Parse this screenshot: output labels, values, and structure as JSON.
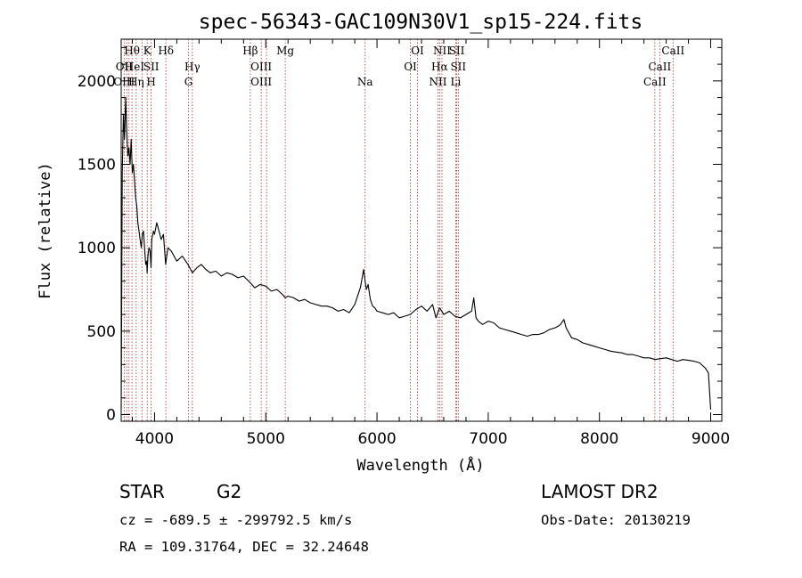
{
  "chart_data": {
    "type": "line",
    "title": "spec-56343-GAC109N30V1_sp15-224.fits",
    "xlabel": "Wavelength (Å)",
    "ylabel": "Flux (relative)",
    "xlim": [
      3700,
      9100
    ],
    "ylim": [
      -40,
      2250
    ],
    "xticks": [
      4000,
      5000,
      6000,
      7000,
      8000,
      9000
    ],
    "yticks": [
      0,
      500,
      1000,
      1500,
      2000
    ],
    "grid": false,
    "series": [
      {
        "x": [
          3700,
          3710,
          3720,
          3730,
          3740,
          3750,
          3760,
          3770,
          3780,
          3790,
          3800,
          3810,
          3820,
          3830,
          3840,
          3850,
          3860,
          3870,
          3880,
          3890,
          3900,
          3910,
          3920,
          3930,
          3933,
          3940,
          3950,
          3960,
          3968,
          3975,
          3990,
          4000,
          4020,
          4040,
          4060,
          4080,
          4100,
          4120,
          4150,
          4200,
          4250,
          4300,
          4340,
          4380,
          4420,
          4460,
          4500,
          4550,
          4600,
          4650,
          4700,
          4750,
          4800,
          4861,
          4900,
          4950,
          5000,
          5050,
          5100,
          5150,
          5175,
          5200,
          5250,
          5300,
          5350,
          5400,
          5450,
          5500,
          5550,
          5600,
          5650,
          5700,
          5750,
          5800,
          5850,
          5880,
          5893,
          5905,
          5920,
          5940,
          5960,
          5980,
          6000,
          6050,
          6100,
          6150,
          6200,
          6250,
          6300,
          6350,
          6400,
          6450,
          6500,
          6530,
          6563,
          6600,
          6650,
          6700,
          6750,
          6800,
          6850,
          6870,
          6890,
          6910,
          6950,
          7000,
          7050,
          7100,
          7150,
          7200,
          7250,
          7300,
          7350,
          7400,
          7450,
          7500,
          7550,
          7600,
          7630,
          7650,
          7680,
          7700,
          7750,
          7800,
          7850,
          7900,
          7950,
          8000,
          8050,
          8100,
          8150,
          8200,
          8250,
          8300,
          8350,
          8400,
          8450,
          8500,
          8550,
          8600,
          8650,
          8700,
          8750,
          8800,
          8850,
          8900,
          8950,
          8980,
          9000
        ],
        "y": [
          30,
          1450,
          1800,
          1650,
          1900,
          1700,
          1550,
          1600,
          1500,
          1650,
          1450,
          1500,
          1400,
          1300,
          1250,
          1150,
          1100,
          1050,
          1000,
          1080,
          1100,
          1000,
          900,
          920,
          850,
          950,
          1000,
          980,
          880,
          1050,
          1100,
          1080,
          1150,
          1100,
          1050,
          1080,
          900,
          1000,
          980,
          920,
          950,
          900,
          850,
          880,
          900,
          870,
          850,
          860,
          830,
          850,
          840,
          820,
          830,
          790,
          760,
          780,
          770,
          740,
          750,
          720,
          700,
          710,
          700,
          680,
          690,
          670,
          660,
          650,
          650,
          640,
          620,
          630,
          610,
          660,
          760,
          870,
          800,
          750,
          780,
          690,
          650,
          640,
          620,
          610,
          600,
          610,
          580,
          590,
          600,
          630,
          650,
          620,
          660,
          580,
          640,
          600,
          620,
          590,
          580,
          600,
          620,
          700,
          580,
          560,
          540,
          560,
          550,
          520,
          510,
          500,
          490,
          480,
          470,
          480,
          480,
          490,
          510,
          520,
          530,
          540,
          570,
          520,
          460,
          450,
          430,
          420,
          410,
          400,
          390,
          380,
          375,
          370,
          360,
          360,
          350,
          340,
          340,
          330,
          335,
          340,
          330,
          320,
          330,
          325,
          320,
          310,
          280,
          250,
          30
        ]
      }
    ],
    "line_markers": [
      {
        "label": "Hθ",
        "x": 3797,
        "row": 0
      },
      {
        "label": "OII",
        "x": 3727,
        "row": 1
      },
      {
        "label": "OIII",
        "x": 3727,
        "row": 2
      },
      {
        "label": "HeI",
        "x": 3820,
        "row": 1
      },
      {
        "label": "Hη",
        "x": 3835,
        "row": 2
      },
      {
        "label": "K",
        "x": 3934,
        "row": 0
      },
      {
        "label": "SII",
        "x": 3970,
        "row": 1
      },
      {
        "label": "H",
        "x": 3969,
        "row": 2
      },
      {
        "label": "Hδ",
        "x": 4102,
        "row": 0
      },
      {
        "label": "Hγ",
        "x": 4340,
        "row": 1
      },
      {
        "label": "G",
        "x": 4305,
        "row": 2
      },
      {
        "label": "Hβ",
        "x": 4861,
        "row": 0
      },
      {
        "label": "OIII",
        "x": 4959,
        "row": 1
      },
      {
        "label": "OIII",
        "x": 4959,
        "row": 2
      },
      {
        "label": "Mg",
        "x": 5175,
        "row": 0
      },
      {
        "label": "Na",
        "x": 5893,
        "row": 2
      },
      {
        "label": "OI",
        "x": 6364,
        "row": 0
      },
      {
        "label": "OI",
        "x": 6300,
        "row": 1
      },
      {
        "label": "NII",
        "x": 6584,
        "row": 0
      },
      {
        "label": "Hα",
        "x": 6563,
        "row": 1
      },
      {
        "label": "NII",
        "x": 6548,
        "row": 2
      },
      {
        "label": "SII",
        "x": 6717,
        "row": 0
      },
      {
        "label": "SII",
        "x": 6731,
        "row": 1
      },
      {
        "label": "Li",
        "x": 6708,
        "row": 2
      },
      {
        "label": "CaII",
        "x": 8662,
        "row": 0
      },
      {
        "label": "CaII",
        "x": 8542,
        "row": 1
      },
      {
        "label": "CaII",
        "x": 8498,
        "row": 2
      }
    ],
    "marker_lines_x": [
      3727,
      3750,
      3770,
      3797,
      3835,
      3889,
      3934,
      3969,
      4102,
      4305,
      4340,
      4861,
      4959,
      5007,
      5175,
      5893,
      6300,
      6364,
      6548,
      6563,
      6584,
      6708,
      6717,
      6731,
      8498,
      8542,
      8662
    ]
  },
  "info": {
    "object_class": "STAR",
    "subclass": "G2",
    "survey": "LAMOST DR2",
    "cz": "cz = -689.5 ± -299792.5 km/s",
    "obs_date": "Obs-Date: 20130219",
    "coords": "RA = 109.31764, DEC =  32.24648"
  },
  "colors": {
    "spectrum": "#000000",
    "marker_lines": "#b03030",
    "axes": "#000000"
  }
}
